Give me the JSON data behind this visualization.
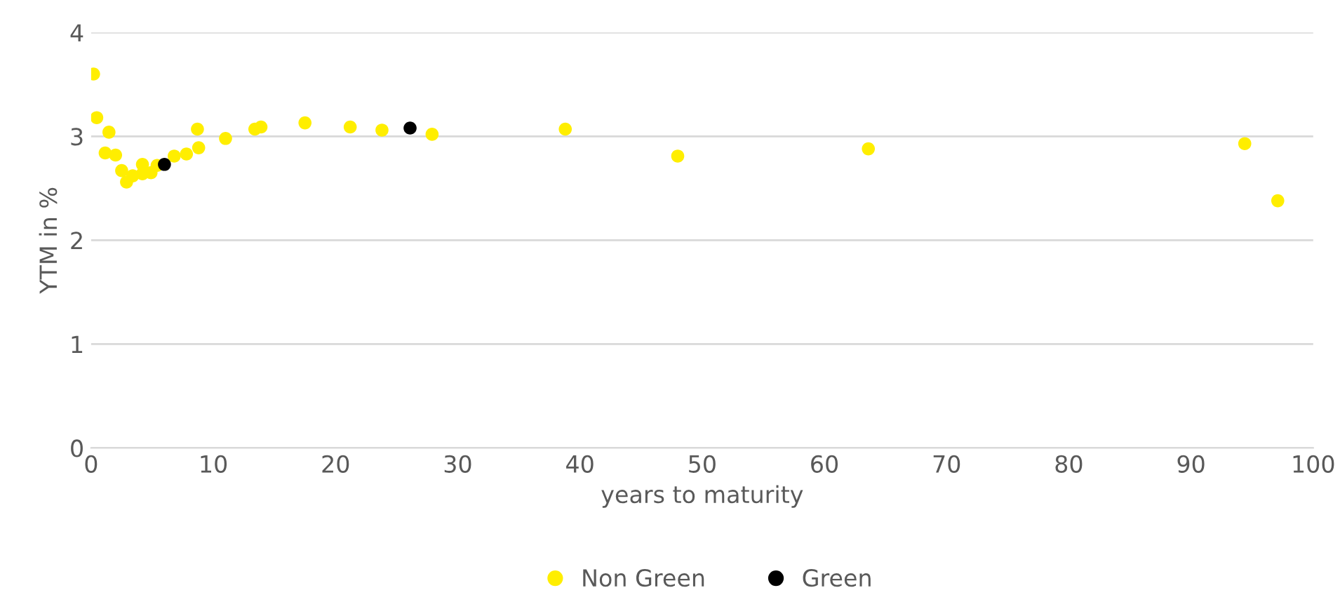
{
  "chart_data": {
    "type": "scatter",
    "xlabel": "years to maturity",
    "ylabel": "YTM in %",
    "xlim": [
      0,
      100
    ],
    "ylim": [
      0,
      4
    ],
    "xticks": [
      0,
      10,
      20,
      30,
      40,
      50,
      60,
      70,
      80,
      90,
      100
    ],
    "yticks": [
      0,
      1,
      2,
      3,
      4
    ],
    "grid": "y",
    "legend": "bottom",
    "marker": "circle",
    "series": [
      {
        "name": "Non Green",
        "color": "#ffee00",
        "x": [
          0.2,
          0.46,
          1.46,
          1.15,
          2.0,
          2.5,
          2.9,
          3.4,
          4.2,
          4.2,
          4.9,
          5.4,
          6.8,
          7.8,
          8.8,
          8.7,
          11.0,
          13.4,
          13.9,
          17.5,
          21.2,
          23.8,
          27.9,
          38.8,
          48.0,
          63.6,
          94.4,
          97.1
        ],
        "values": [
          3.6,
          3.18,
          3.04,
          2.84,
          2.82,
          2.67,
          2.56,
          2.62,
          2.73,
          2.64,
          2.65,
          2.72,
          2.81,
          2.83,
          2.89,
          3.07,
          2.98,
          3.07,
          3.09,
          3.13,
          3.09,
          3.06,
          3.02,
          3.07,
          2.81,
          2.88,
          2.93,
          2.38
        ]
      },
      {
        "name": "Green",
        "color": "#000000",
        "x": [
          6.0,
          26.1
        ],
        "values": [
          2.73,
          3.08
        ]
      }
    ]
  }
}
